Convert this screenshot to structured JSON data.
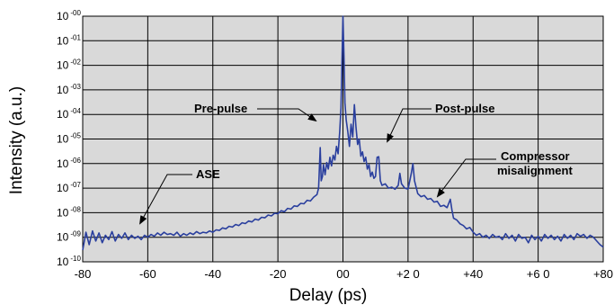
{
  "chart_data": {
    "type": "line",
    "title": "",
    "xlabel": "Delay (ps)",
    "ylabel": "Intensity (a.u.)",
    "xlim": [
      -80,
      80
    ],
    "ylim_log10": [
      -10,
      0
    ],
    "y_scale": "log",
    "grid": true,
    "background_color": "#d9d9d9",
    "line_color": "#2a3f9e",
    "x_ticks": [
      -80,
      -60,
      -40,
      -20,
      0,
      20,
      40,
      60,
      80
    ],
    "x_tick_labels": [
      "-80",
      "-60",
      "-40",
      "-20",
      "00",
      "+2 0",
      "+40",
      "+6 0",
      "+80"
    ],
    "y_tick_base": "10",
    "y_tick_exponents": [
      "-00",
      "-01",
      "-02",
      "-03",
      "-04",
      "-05",
      "-06",
      "-07",
      "-08",
      "-09",
      "-10"
    ],
    "series": [
      {
        "values": [
          [
            -80,
            3e-10
          ],
          [
            -79,
            1.6e-09
          ],
          [
            -78,
            5e-10
          ],
          [
            -77,
            1.8e-09
          ],
          [
            -76,
            7e-10
          ],
          [
            -75,
            1.5e-09
          ],
          [
            -74,
            6e-10
          ],
          [
            -73,
            1.2e-09
          ],
          [
            -72,
            8e-10
          ],
          [
            -71,
            1.7e-09
          ],
          [
            -70,
            7e-10
          ],
          [
            -69,
            1.3e-09
          ],
          [
            -68,
            9e-10
          ],
          [
            -67,
            1.5e-09
          ],
          [
            -66,
            8e-10
          ],
          [
            -65,
            1.2e-09
          ],
          [
            -64,
            9e-10
          ],
          [
            -63,
            1.1e-09
          ],
          [
            -62,
            8e-10
          ],
          [
            -61,
            1.2e-09
          ],
          [
            -60,
            1e-09
          ],
          [
            -59,
            1.3e-09
          ],
          [
            -58,
            1.1e-09
          ],
          [
            -57,
            1.5e-09
          ],
          [
            -56,
            1.2e-09
          ],
          [
            -55,
            1.6e-09
          ],
          [
            -54,
            1.3e-09
          ],
          [
            -53,
            1.4e-09
          ],
          [
            -52,
            1.2e-09
          ],
          [
            -51,
            1.6e-09
          ],
          [
            -50,
            1.1e-09
          ],
          [
            -49,
            1.4e-09
          ],
          [
            -48,
            1.2e-09
          ],
          [
            -47,
            1.5e-09
          ],
          [
            -46,
            1.3e-09
          ],
          [
            -45,
            1.7e-09
          ],
          [
            -44,
            1.4e-09
          ],
          [
            -43,
            1.6e-09
          ],
          [
            -42,
            1.5e-09
          ],
          [
            -41,
            1.8e-09
          ],
          [
            -40,
            1.6e-09
          ],
          [
            -39,
            2e-09
          ],
          [
            -38,
            1.9e-09
          ],
          [
            -37,
            2.4e-09
          ],
          [
            -36,
            2.2e-09
          ],
          [
            -35,
            2.8e-09
          ],
          [
            -34,
            2.6e-09
          ],
          [
            -33,
            3.3e-09
          ],
          [
            -32,
            3e-09
          ],
          [
            -31,
            3.9e-09
          ],
          [
            -30,
            3.6e-09
          ],
          [
            -29,
            4.6e-09
          ],
          [
            -28,
            4.2e-09
          ],
          [
            -27,
            5.5e-09
          ],
          [
            -26,
            5e-09
          ],
          [
            -25,
            6.5e-09
          ],
          [
            -24,
            6.2e-09
          ],
          [
            -23,
            8e-09
          ],
          [
            -22,
            7.4e-09
          ],
          [
            -21,
            9.5e-09
          ],
          [
            -20,
            9e-09
          ],
          [
            -19,
            1.2e-08
          ],
          [
            -18,
            1.1e-08
          ],
          [
            -17,
            1.5e-08
          ],
          [
            -16,
            1.4e-08
          ],
          [
            -15,
            1.9e-08
          ],
          [
            -14,
            1.8e-08
          ],
          [
            -13,
            2.4e-08
          ],
          [
            -12,
            2.3e-08
          ],
          [
            -11,
            3.2e-08
          ],
          [
            -10,
            3e-08
          ],
          [
            -9,
            4.3e-08
          ],
          [
            -8,
            5.5e-08
          ],
          [
            -7.5,
            1e-07
          ],
          [
            -7,
            4.5e-06
          ],
          [
            -6.7,
            2e-07
          ],
          [
            -6.3,
            3e-07
          ],
          [
            -6,
            9e-07
          ],
          [
            -5.5,
            3.5e-07
          ],
          [
            -5,
            1.1e-06
          ],
          [
            -4.5,
            6e-07
          ],
          [
            -4,
            1.8e-06
          ],
          [
            -3.5,
            8e-07
          ],
          [
            -3,
            2.2e-06
          ],
          [
            -2.5,
            1.4e-06
          ],
          [
            -2,
            5e-06
          ],
          [
            -1.5,
            2.5e-06
          ],
          [
            -1,
            2e-05
          ],
          [
            -0.6,
            0.00018
          ],
          [
            -0.3,
            0.015
          ],
          [
            0,
            1.0
          ],
          [
            0.3,
            0.025
          ],
          [
            0.6,
            0.0003
          ],
          [
            1,
            6e-05
          ],
          [
            1.5,
            2e-05
          ],
          [
            2,
            5e-06
          ],
          [
            2.5,
            4e-05
          ],
          [
            3,
            1.2e-05
          ],
          [
            3.5,
            0.00025
          ],
          [
            4,
            3e-05
          ],
          [
            4.5,
            6e-06
          ],
          [
            5,
            1e-05
          ],
          [
            5.5,
            2e-06
          ],
          [
            6,
            3e-06
          ],
          [
            6.5,
            1.2e-06
          ],
          [
            7,
            1.8e-06
          ],
          [
            7.5,
            6e-07
          ],
          [
            8,
            9e-07
          ],
          [
            8.5,
            3e-07
          ],
          [
            9,
            4.5e-07
          ],
          [
            9.5,
            2.5e-07
          ],
          [
            10,
            3e-07
          ],
          [
            10.5,
            1.8e-06
          ],
          [
            11,
            1.9e-06
          ],
          [
            11.5,
            2e-07
          ],
          [
            12,
            1.3e-07
          ],
          [
            13,
            1.5e-07
          ],
          [
            14,
            1e-07
          ],
          [
            15,
            1.1e-07
          ],
          [
            16,
            9e-08
          ],
          [
            17,
            1.3e-07
          ],
          [
            17.5,
            4e-07
          ],
          [
            18,
            1.5e-07
          ],
          [
            19,
            1e-07
          ],
          [
            20,
            9e-08
          ],
          [
            21,
            4e-07
          ],
          [
            21.5,
            1e-06
          ],
          [
            22,
            2e-07
          ],
          [
            23,
            6e-08
          ],
          [
            24,
            4.5e-08
          ],
          [
            25,
            5e-08
          ],
          [
            26,
            3.5e-08
          ],
          [
            27,
            3.8e-08
          ],
          [
            28,
            2.7e-08
          ],
          [
            29,
            2.9e-08
          ],
          [
            30,
            1.8e-08
          ],
          [
            31,
            2e-08
          ],
          [
            32,
            1.6e-08
          ],
          [
            33,
            3.5e-08
          ],
          [
            33.5,
            1.3e-08
          ],
          [
            34,
            6e-09
          ],
          [
            35,
            5e-09
          ],
          [
            36,
            3.5e-09
          ],
          [
            37,
            3e-09
          ],
          [
            38,
            2.2e-09
          ],
          [
            39,
            2.5e-09
          ],
          [
            40,
            1.6e-09
          ],
          [
            41,
            1.2e-09
          ],
          [
            42,
            1.4e-09
          ],
          [
            43,
            1e-09
          ],
          [
            44,
            1.2e-09
          ],
          [
            45,
            9e-10
          ],
          [
            46,
            1.3e-09
          ],
          [
            47,
            1e-09
          ],
          [
            48,
            1.1e-09
          ],
          [
            49,
            8e-10
          ],
          [
            50,
            1.4e-09
          ],
          [
            51,
            9e-10
          ],
          [
            52,
            1.2e-09
          ],
          [
            53,
            7e-10
          ],
          [
            54,
            1.3e-09
          ],
          [
            55,
            9e-10
          ],
          [
            56,
            1e-09
          ],
          [
            57,
            6e-10
          ],
          [
            58,
            1.2e-09
          ],
          [
            59,
            8e-10
          ],
          [
            60,
            1.1e-09
          ],
          [
            61,
            7e-10
          ],
          [
            62,
            1.3e-09
          ],
          [
            63,
            9e-10
          ],
          [
            64,
            1.2e-09
          ],
          [
            65,
            8e-10
          ],
          [
            66,
            1.1e-09
          ],
          [
            67,
            7e-10
          ],
          [
            68,
            1.3e-09
          ],
          [
            69,
            9e-10
          ],
          [
            70,
            1.2e-09
          ],
          [
            71,
            8e-10
          ],
          [
            72,
            1.4e-09
          ],
          [
            73,
            1.1e-09
          ],
          [
            74,
            1.3e-09
          ],
          [
            75,
            9e-10
          ],
          [
            76,
            1.2e-09
          ],
          [
            77,
            1e-09
          ],
          [
            78,
            7e-10
          ],
          [
            79,
            5e-10
          ],
          [
            80,
            4e-10
          ]
        ]
      }
    ],
    "annotations": [
      {
        "text": "Pre-pulse",
        "target": [
          -7,
          4.5e-06
        ]
      },
      {
        "text": "Post-pulse",
        "target": [
          8.5,
          1.6e-06
        ]
      },
      {
        "text": "Compressor\nmisalignment",
        "target": [
          20,
          3.5e-08
        ]
      },
      {
        "text": "ASE",
        "target": [
          -64,
          8e-10
        ]
      }
    ]
  }
}
